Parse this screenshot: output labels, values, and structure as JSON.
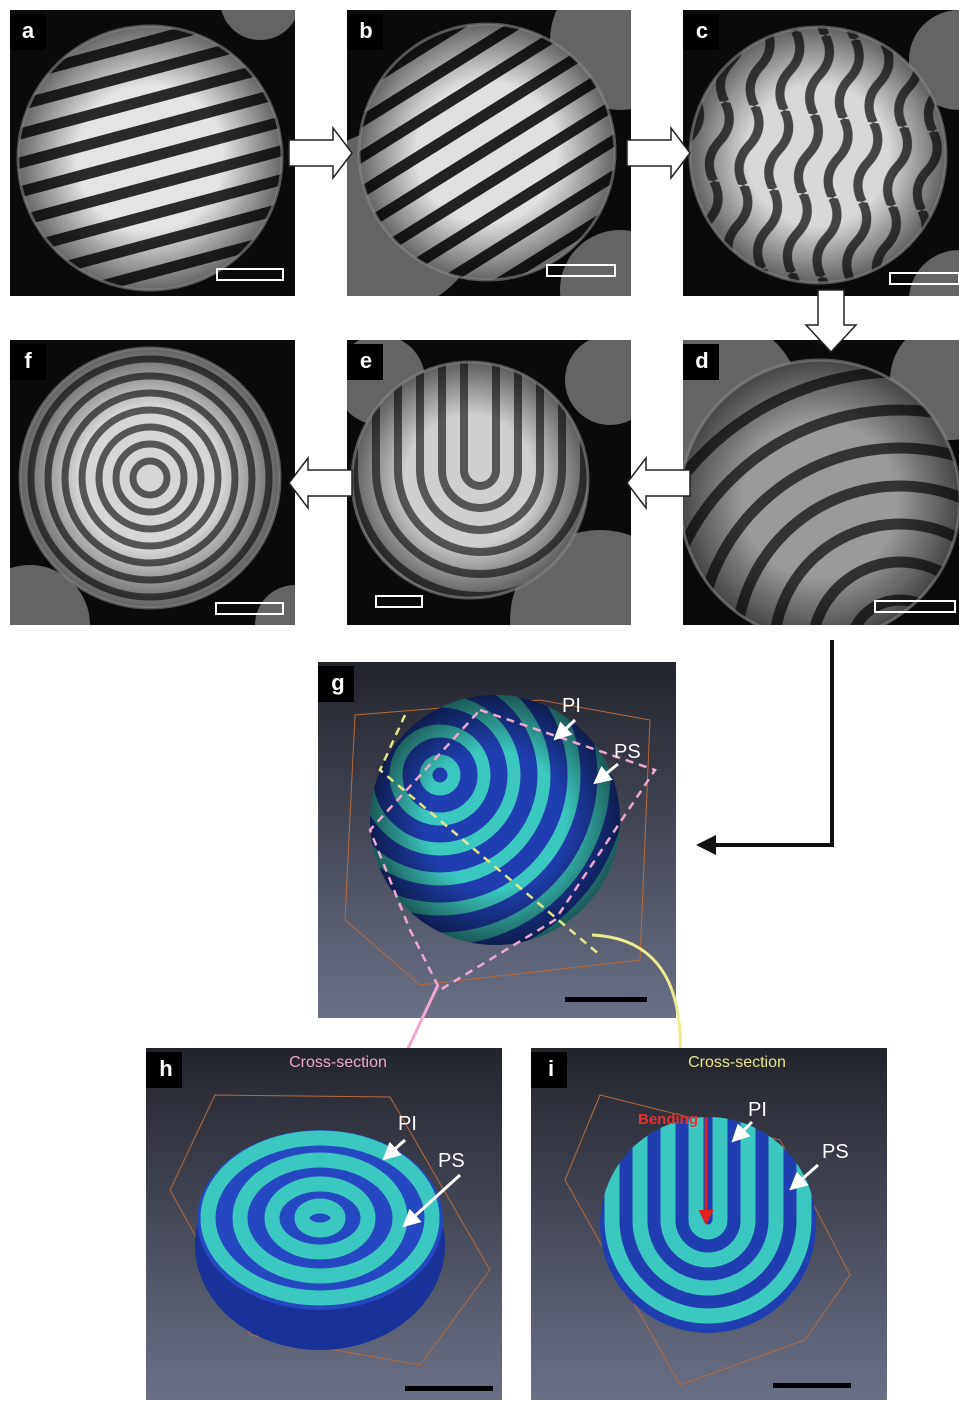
{
  "panels": [
    {
      "label": "a"
    },
    {
      "label": "b"
    },
    {
      "label": "c"
    },
    {
      "label": "d"
    },
    {
      "label": "e"
    },
    {
      "label": "f"
    }
  ],
  "tomography": [
    {
      "label": "g",
      "pi": "PI",
      "ps": "PS"
    },
    {
      "label": "h",
      "caption": "Cross-section",
      "pi": "PI",
      "ps": "PS"
    },
    {
      "label": "i",
      "caption": "Cross-section",
      "note": "Bending",
      "pi": "PI",
      "ps": "PS"
    }
  ]
}
